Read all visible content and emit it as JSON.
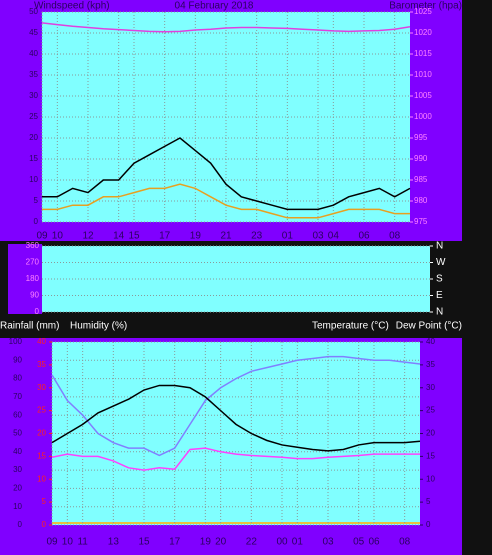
{
  "chart_data": [
    {
      "type": "line",
      "title": "04 February 2018",
      "y_label": "Windspeed (kph)",
      "y2_label": "Barometer (hpa)",
      "x": [
        0,
        1,
        2,
        3,
        4,
        5,
        6,
        7,
        8,
        9,
        10,
        11,
        12,
        13,
        14,
        15,
        16,
        17,
        18,
        19,
        20,
        21,
        22,
        23,
        24
      ],
      "xlim": [
        0,
        24
      ],
      "xticks": [
        {
          "value": 0,
          "label": "09"
        },
        {
          "value": 1,
          "label": "10"
        },
        {
          "value": 3,
          "label": "12"
        },
        {
          "value": 5,
          "label": "14"
        },
        {
          "value": 6,
          "label": "15"
        },
        {
          "value": 8,
          "label": "17"
        },
        {
          "value": 10,
          "label": "19"
        },
        {
          "value": 12,
          "label": "21"
        },
        {
          "value": 14,
          "label": "23"
        },
        {
          "value": 16,
          "label": "01"
        },
        {
          "value": 18,
          "label": "03"
        },
        {
          "value": 19,
          "label": "04"
        },
        {
          "value": 21,
          "label": "06"
        },
        {
          "value": 23,
          "label": "08"
        }
      ],
      "ylim": [
        0,
        50
      ],
      "yticks": [
        0,
        5,
        10,
        15,
        20,
        25,
        30,
        35,
        40,
        45,
        50
      ],
      "y2lim": [
        975,
        1025
      ],
      "y2ticks": [
        975,
        980,
        985,
        990,
        995,
        1000,
        1005,
        1010,
        1015,
        1020,
        1025
      ],
      "grid": true,
      "series": [
        {
          "color": "#000000",
          "values": [
            6,
            6,
            8,
            7,
            10,
            10,
            14,
            16,
            18,
            20,
            17,
            14,
            9,
            6,
            5,
            4,
            3,
            3,
            3,
            4,
            6,
            7,
            8,
            6,
            8
          ]
        },
        {
          "color": "#e8a020",
          "values": [
            3,
            3,
            4,
            4,
            6,
            6,
            7,
            8,
            8,
            9,
            8,
            6,
            4,
            3,
            3,
            2,
            1,
            1,
            1,
            2,
            3,
            3,
            3,
            2,
            2
          ]
        },
        {
          "color": "#e040e0",
          "axis": "y2",
          "values": [
            1022.4,
            1022,
            1021.6,
            1021.3,
            1021,
            1020.8,
            1020.6,
            1020.4,
            1020.3,
            1020.4,
            1020.7,
            1020.9,
            1021.2,
            1021.3,
            1021.3,
            1021.2,
            1021.1,
            1020.9,
            1020.7,
            1020.5,
            1020.4,
            1020.5,
            1020.6,
            1020.9,
            1021.5
          ]
        }
      ]
    },
    {
      "type": "line",
      "xlim": [
        0,
        24
      ],
      "ylim": [
        0,
        360
      ],
      "yticks": [
        0,
        90,
        180,
        270,
        360
      ],
      "y2lim": [
        0,
        360
      ],
      "y2ticks": [
        {
          "value": 0,
          "label": "N"
        },
        {
          "value": 90,
          "label": "E"
        },
        {
          "value": 180,
          "label": "S"
        },
        {
          "value": 270,
          "label": "W"
        },
        {
          "value": 360,
          "label": "N"
        }
      ],
      "grid": true,
      "series": []
    },
    {
      "type": "line",
      "y_label": "Rainfall (mm)",
      "y3_label": "Humidity (%)",
      "y2_label": "Temperature (°C)",
      "y4_label": "Dew Point (°C)",
      "x": [
        0,
        1,
        2,
        3,
        4,
        5,
        6,
        7,
        8,
        9,
        10,
        11,
        12,
        13,
        14,
        15,
        16,
        17,
        18,
        19,
        20,
        21,
        22,
        23,
        24
      ],
      "xlim": [
        0,
        24
      ],
      "xticks": [
        {
          "value": 0,
          "label": "09"
        },
        {
          "value": 1,
          "label": "10"
        },
        {
          "value": 2,
          "label": "11"
        },
        {
          "value": 4,
          "label": "13"
        },
        {
          "value": 6,
          "label": "15"
        },
        {
          "value": 8,
          "label": "17"
        },
        {
          "value": 10,
          "label": "19"
        },
        {
          "value": 11,
          "label": "20"
        },
        {
          "value": 13,
          "label": "22"
        },
        {
          "value": 15,
          "label": "00"
        },
        {
          "value": 16,
          "label": "01"
        },
        {
          "value": 18,
          "label": "03"
        },
        {
          "value": 20,
          "label": "05"
        },
        {
          "value": 21,
          "label": "06"
        },
        {
          "value": 23,
          "label": "08"
        }
      ],
      "ylim": [
        0,
        100
      ],
      "yticks": [
        0,
        10,
        20,
        30,
        40,
        50,
        60,
        70,
        80,
        90,
        100
      ],
      "y2lim": [
        0,
        40
      ],
      "y2ticks": [
        0,
        5,
        10,
        15,
        20,
        25,
        30,
        35,
        40
      ],
      "y3lim": [
        0,
        40
      ],
      "y3ticks": [
        0,
        5,
        10,
        15,
        20,
        25,
        30,
        35,
        40
      ],
      "grid": true,
      "series": [
        {
          "color": "#8080ff",
          "values": [
            82,
            68,
            60,
            50,
            45,
            42,
            42,
            38,
            42,
            55,
            68,
            75,
            80,
            84,
            86,
            88,
            90,
            91,
            92,
            92,
            91,
            90,
            90,
            89,
            88
          ]
        },
        {
          "color": "#000000",
          "axis": "y2",
          "values": [
            18,
            20,
            22,
            24.5,
            26,
            27.5,
            29.5,
            30.5,
            30.5,
            30,
            28,
            25,
            22,
            20,
            18.5,
            17.5,
            17,
            16.5,
            16.2,
            16.5,
            17.5,
            18,
            18,
            18,
            18.3
          ]
        },
        {
          "color": "#ff40ff",
          "axis": "y2",
          "values": [
            14.8,
            15.5,
            15,
            15,
            14,
            12.5,
            12,
            12.5,
            12.2,
            16.5,
            16.8,
            16,
            15.5,
            15.2,
            15,
            14.8,
            14.5,
            14.5,
            14.8,
            15,
            15.2,
            15.5,
            15.5,
            15.5,
            15.5
          ]
        }
      ]
    }
  ]
}
